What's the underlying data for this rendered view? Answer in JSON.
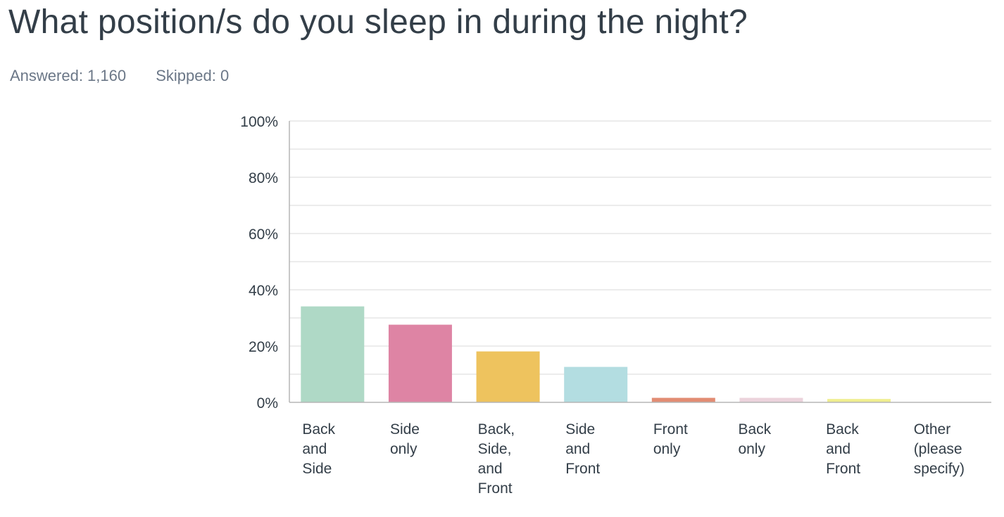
{
  "question": {
    "title": "What position/s do you sleep in during the night?"
  },
  "stats": {
    "answered": "Answered: 1,160",
    "skipped": "Skipped: 0"
  },
  "chart_data": {
    "type": "bar",
    "categories": [
      [
        "Back",
        "and",
        "Side"
      ],
      [
        "Side",
        "only"
      ],
      [
        "Back,",
        "Side,",
        "and",
        "Front"
      ],
      [
        "Side",
        "and",
        "Front"
      ],
      [
        "Front",
        "only"
      ],
      [
        "Back",
        "only"
      ],
      [
        "Back",
        "and",
        "Front"
      ],
      [
        "Other",
        "(please",
        "specify)"
      ]
    ],
    "values": [
      34.1,
      27.6,
      18.1,
      12.6,
      1.6,
      1.6,
      1.2,
      0.0
    ],
    "colors": [
      "#afd9c6",
      "#de84a4",
      "#eec35e",
      "#b3dde1",
      "#e28c73",
      "#ecd3dc",
      "#f0ee8f",
      "#cccccc"
    ],
    "ylim": [
      0,
      100
    ],
    "yticks": [
      "0%",
      "20%",
      "40%",
      "60%",
      "80%",
      "100%"
    ],
    "grid": true,
    "grid_color": "#e6e6e6",
    "axis_color": "#b5b5b5"
  }
}
